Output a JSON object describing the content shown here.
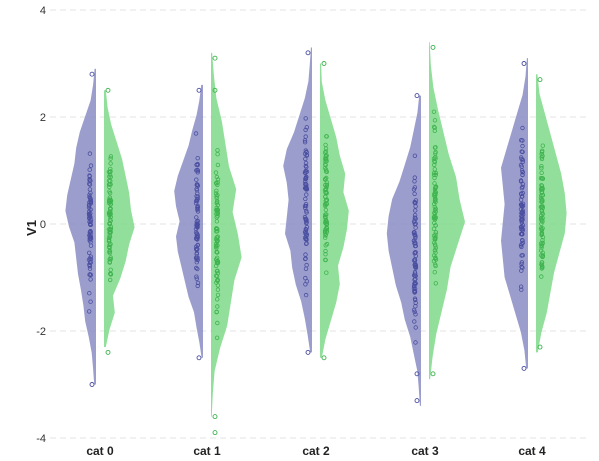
{
  "chart_data": {
    "type": "split-violin-with-points",
    "title": "",
    "xlabel": "",
    "ylabel": "V1",
    "ylim": [
      -4,
      4
    ],
    "yticks": [
      -4,
      -2,
      0,
      2,
      4
    ],
    "grid": "horizontal dashed at y ticks",
    "categories": [
      "cat 0",
      "cat 1",
      "cat 2",
      "cat 3",
      "cat 4"
    ],
    "series": [
      {
        "color": "#4b4fa0",
        "fill": "#8a8dc4",
        "side": "left",
        "range": [
          [
            -3.0,
            2.9
          ],
          [
            -2.5,
            2.6
          ],
          [
            -2.4,
            3.3
          ],
          [
            -3.4,
            2.4
          ],
          [
            -2.7,
            3.1
          ]
        ],
        "density": [
          [
            0.05,
            0.08,
            0.12,
            0.2,
            0.3,
            0.35,
            0.42,
            0.5,
            0.55,
            0.6,
            0.75,
            0.85,
            0.8,
            0.7,
            0.6,
            0.55,
            0.45,
            0.3,
            0.15,
            0.08,
            0.04
          ],
          [
            0.04,
            0.1,
            0.18,
            0.25,
            0.4,
            0.5,
            0.6,
            0.7,
            0.75,
            0.65,
            0.75,
            0.8,
            0.7,
            0.55,
            0.4,
            0.3,
            0.18,
            0.1,
            0.05
          ],
          [
            0.05,
            0.12,
            0.2,
            0.3,
            0.45,
            0.55,
            0.6,
            0.75,
            0.7,
            0.65,
            0.7,
            0.8,
            0.7,
            0.5,
            0.35,
            0.2,
            0.1,
            0.06,
            0.03
          ],
          [
            0.03,
            0.06,
            0.1,
            0.2,
            0.3,
            0.45,
            0.55,
            0.7,
            0.8,
            0.9,
            0.95,
            0.9,
            0.8,
            0.6,
            0.45,
            0.3,
            0.2,
            0.1,
            0.05
          ],
          [
            0.05,
            0.1,
            0.2,
            0.35,
            0.5,
            0.65,
            0.7,
            0.75,
            0.7,
            0.65,
            0.7,
            0.75,
            0.6,
            0.45,
            0.3,
            0.15,
            0.07,
            0.03
          ]
        ]
      },
      {
        "color": "#3fb34f",
        "fill": "#7fd98a",
        "side": "right",
        "range": [
          [
            -2.3,
            2.5
          ],
          [
            -3.6,
            3.2
          ],
          [
            -2.5,
            3.0
          ],
          [
            -2.9,
            3.4
          ],
          [
            -2.4,
            2.8
          ]
        ],
        "density": [
          [
            0.05,
            0.15,
            0.3,
            0.25,
            0.45,
            0.6,
            0.7,
            0.85,
            0.75,
            0.7,
            0.6,
            0.5,
            0.35,
            0.2,
            0.1,
            0.05
          ],
          [
            0.02,
            0.05,
            0.1,
            0.25,
            0.45,
            0.55,
            0.65,
            0.85,
            0.75,
            0.6,
            0.7,
            0.5,
            0.4,
            0.3,
            0.15,
            0.08,
            0.03
          ],
          [
            0.05,
            0.15,
            0.3,
            0.45,
            0.55,
            0.5,
            0.65,
            0.75,
            0.8,
            0.65,
            0.7,
            0.55,
            0.45,
            0.3,
            0.15,
            0.05,
            0.03
          ],
          [
            0.03,
            0.1,
            0.2,
            0.35,
            0.5,
            0.6,
            0.8,
            1.0,
            0.85,
            0.75,
            0.55,
            0.4,
            0.25,
            0.12,
            0.05,
            0.02
          ],
          [
            0.05,
            0.15,
            0.3,
            0.4,
            0.5,
            0.65,
            0.8,
            0.85,
            0.8,
            0.7,
            0.55,
            0.4,
            0.25,
            0.1,
            0.04
          ]
        ]
      }
    ],
    "outliers": [
      [
        [
          -3.0,
          2.8
        ],
        [
          -2.4,
          2.5
        ]
      ],
      [
        [
          -2.5,
          2.5
        ],
        [
          -3.9,
          -3.6,
          3.1,
          2.5
        ]
      ],
      [
        [
          -2.4,
          3.2
        ],
        [
          -2.5,
          3.0
        ]
      ],
      [
        [
          -3.3,
          -2.8,
          2.4
        ],
        [
          -2.8,
          3.3
        ]
      ],
      [
        [
          -2.7,
          3.0
        ],
        [
          -2.3,
          2.7
        ]
      ]
    ]
  }
}
